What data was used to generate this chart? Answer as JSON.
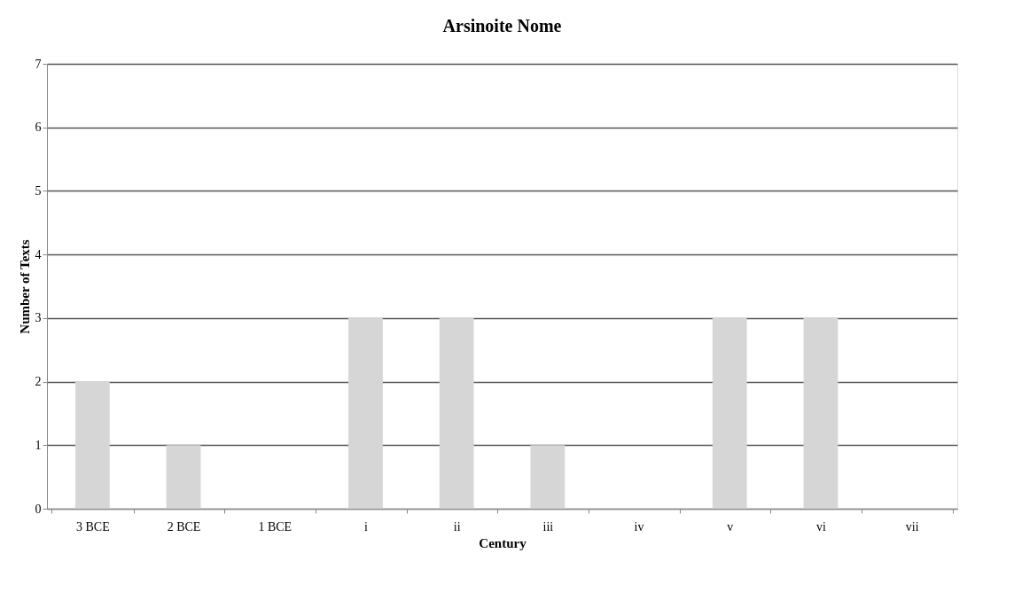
{
  "chart_data": {
    "type": "bar",
    "title": "Arsinoite Nome",
    "xlabel": "Century",
    "ylabel": "Number of Texts",
    "categories": [
      "3 BCE",
      "2 BCE",
      "1 BCE",
      "i",
      "ii",
      "iii",
      "iv",
      "v",
      "vi",
      "vii"
    ],
    "values": [
      2,
      1,
      0,
      3,
      3,
      1,
      0,
      3,
      3,
      0
    ],
    "color": "#d6d6d6",
    "ylim": [
      0,
      7
    ],
    "yticks": [
      0,
      1,
      2,
      3,
      4,
      5,
      6,
      7
    ],
    "grid": "y"
  }
}
